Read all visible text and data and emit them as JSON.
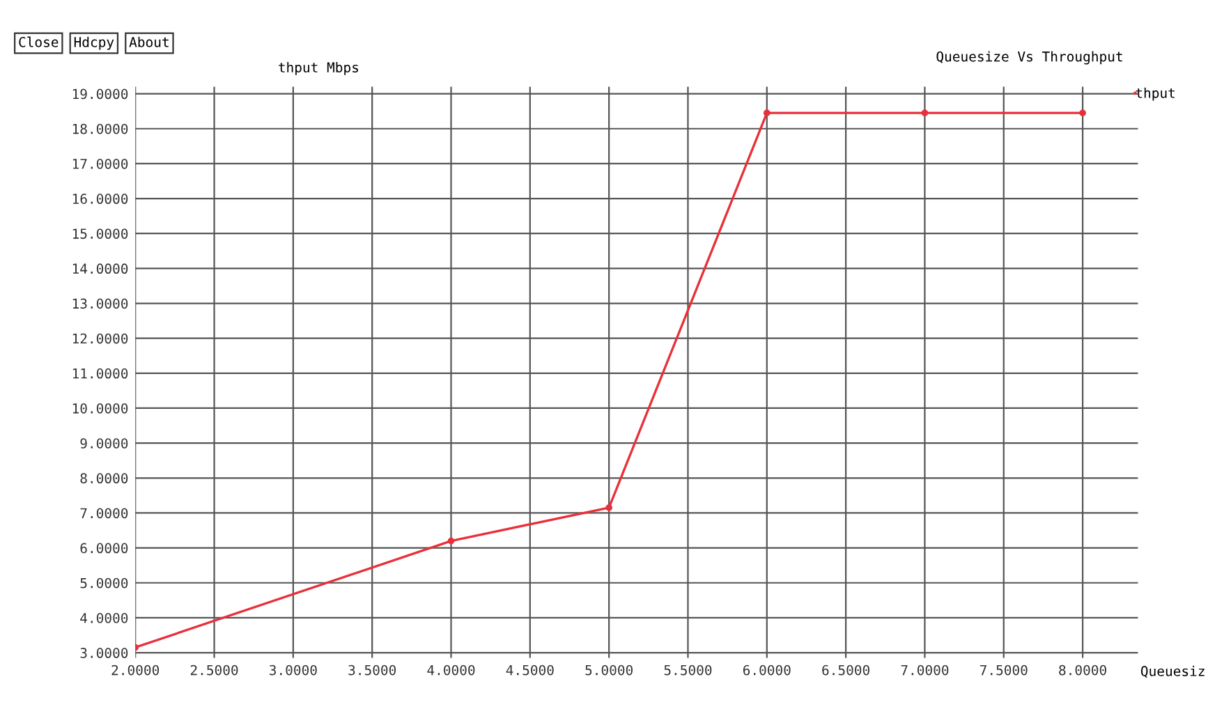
{
  "chart_data": {
    "type": "line",
    "title": "Queuesize Vs Throughput",
    "xlabel": "Queuesiz",
    "ylabel": "thput Mbps",
    "annotations": [
      "Close",
      "Hdcpy",
      "About"
    ],
    "x": [
      2,
      4,
      5,
      6,
      7,
      8
    ],
    "series": [
      {
        "name": "thput",
        "color": "#e8303a",
        "values": [
          3.15,
          6.2,
          7.15,
          18.45,
          18.45,
          18.45
        ]
      }
    ],
    "xlim": [
      2,
      8.35
    ],
    "ylim": [
      2.85,
      19.2
    ],
    "xticks": [
      {
        "value": 2,
        "label": "2.0000"
      },
      {
        "value": 2.5,
        "label": "2.5000"
      },
      {
        "value": 3,
        "label": "3.0000"
      },
      {
        "value": 3.5,
        "label": "3.5000"
      },
      {
        "value": 4,
        "label": "4.0000"
      },
      {
        "value": 4.5,
        "label": "4.5000"
      },
      {
        "value": 5,
        "label": "5.0000"
      },
      {
        "value": 5.5,
        "label": "5.5000"
      },
      {
        "value": 6,
        "label": "6.0000"
      },
      {
        "value": 6.5,
        "label": "6.5000"
      },
      {
        "value": 7,
        "label": "7.0000"
      },
      {
        "value": 7.5,
        "label": "7.5000"
      },
      {
        "value": 8,
        "label": "8.0000"
      }
    ],
    "yticks": [
      {
        "value": 3,
        "label": "3.0000"
      },
      {
        "value": 4,
        "label": "4.0000"
      },
      {
        "value": 5,
        "label": "5.0000"
      },
      {
        "value": 6,
        "label": "6.0000"
      },
      {
        "value": 7,
        "label": "7.0000"
      },
      {
        "value": 8,
        "label": "8.0000"
      },
      {
        "value": 9,
        "label": "9.0000"
      },
      {
        "value": 10,
        "label": "10.0000"
      },
      {
        "value": 11,
        "label": "11.0000"
      },
      {
        "value": 12,
        "label": "12.0000"
      },
      {
        "value": 13,
        "label": "13.0000"
      },
      {
        "value": 14,
        "label": "14.0000"
      },
      {
        "value": 15,
        "label": "15.0000"
      },
      {
        "value": 16,
        "label": "16.0000"
      },
      {
        "value": 17,
        "label": "17.0000"
      },
      {
        "value": 18,
        "label": "18.0000"
      },
      {
        "value": 19,
        "label": "19.0000"
      }
    ],
    "grid": true,
    "legend": "top right",
    "marker": "circle",
    "line_style": "solid"
  }
}
